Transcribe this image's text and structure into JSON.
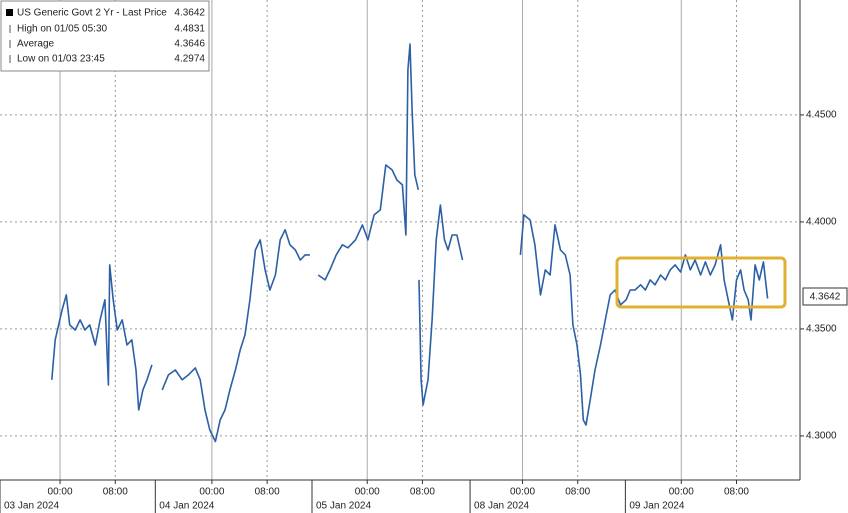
{
  "chart_data": {
    "type": "line",
    "series": [
      {
        "name": "US Generic Govt 2 Yr - Last Price",
        "color": "#2b5fa6",
        "values": [
          4.3262,
          4.3449,
          4.3589,
          4.3659,
          4.3519,
          4.3495,
          4.3542,
          4.3495,
          4.3519,
          4.3425,
          4.3542,
          4.3636,
          4.3238,
          4.3799,
          4.3636,
          4.3495,
          4.3542,
          4.3425,
          4.3449,
          4.3308,
          4.3121,
          4.3215,
          4.3262,
          4.3332,
          null,
          4.3215,
          4.3285,
          4.3308,
          4.3262,
          4.3285,
          4.3318,
          4.3262,
          4.3121,
          4.3028,
          4.2974,
          4.3075,
          4.3121,
          4.3215,
          4.3308,
          4.3402,
          4.3472,
          4.3636,
          4.3869,
          4.3916,
          4.3776,
          4.3682,
          4.3752,
          4.3916,
          4.3963,
          4.3893,
          4.3869,
          4.3822,
          4.3846,
          4.3846,
          null,
          4.3752,
          4.3729,
          4.3776,
          4.3846,
          4.3893,
          4.3879,
          4.3916,
          4.3986,
          4.3916,
          4.4033,
          4.4056,
          4.4266,
          4.4243,
          4.4196,
          4.4173,
          4.3939,
          4.471,
          4.4831,
          4.4523,
          4.422,
          4.415,
          null,
          4.3729,
          4.3262,
          4.3145,
          4.3262,
          4.3542,
          4.3916,
          4.4079,
          4.3916,
          4.3869,
          4.3939,
          4.3939,
          4.3822,
          null,
          4.3846,
          4.4033,
          4.4009,
          4.3893,
          4.3659,
          4.3776,
          4.3752,
          4.3986,
          4.3869,
          4.3846,
          4.3752,
          4.3519,
          4.3425,
          4.3285,
          4.3075,
          4.3051,
          4.3168,
          4.3308,
          4.3425,
          4.3542,
          4.3659,
          4.3682,
          4.3612,
          4.3636,
          4.3682,
          4.3682,
          4.3706,
          4.3682,
          4.3729,
          4.3706,
          4.3752,
          4.3729,
          4.3776,
          4.3799,
          4.3766,
          4.3846,
          4.3776,
          4.3822,
          4.3752,
          4.3813,
          4.3752,
          4.3799,
          4.3893,
          4.3729,
          4.3636,
          4.3542,
          4.3729,
          4.3776,
          4.3682,
          4.3636,
          4.3542,
          4.3799,
          4.3729,
          4.3813,
          4.3642
        ]
      }
    ],
    "x": [
      -1.2,
      -0.7,
      0.3,
      0.9,
      1.4,
      2.2,
      2.9,
      3.6,
      4.3,
      5.1,
      5.8,
      6.5,
      7.0,
      7.2,
      7.7,
      8.3,
      9.0,
      9.7,
      10.4,
      11.0,
      11.4,
      12.0,
      12.6,
      13.3,
      14.0,
      14.8,
      15.7,
      16.7,
      17.7,
      18.6,
      19.6,
      20.3,
      21.0,
      21.7,
      22.5,
      23.2,
      23.9,
      24.6,
      25.4,
      26.1,
      26.8,
      27.5,
      28.3,
      29.0,
      29.7,
      30.4,
      31.2,
      31.9,
      32.6,
      33.3,
      34.1,
      34.8,
      35.5,
      36.2,
      36.8,
      37.4,
      38.4,
      39.1,
      40.0,
      40.9,
      41.7,
      42.8,
      43.8,
      44.6,
      45.5,
      46.4,
      47.2,
      48.1,
      48.8,
      49.6,
      50.1,
      50.4,
      50.7,
      51.0,
      51.4,
      51.9,
      51.95,
      52.0,
      52.3,
      52.6,
      53.3,
      53.9,
      54.5,
      55.1,
      55.7,
      56.2,
      56.8,
      57.5,
      58.3,
      62.0,
      66.7,
      67.2,
      68.1,
      68.8,
      69.6,
      70.3,
      71.0,
      71.7,
      72.5,
      73.2,
      73.9,
      74.3,
      74.9,
      75.4,
      75.8,
      76.2,
      76.8,
      77.5,
      78.3,
      79.0,
      79.7,
      80.4,
      81.2,
      82.0,
      82.6,
      83.3,
      84.1,
      84.8,
      85.5,
      86.2,
      87.0,
      87.7,
      88.4,
      89.1,
      89.9,
      90.6,
      91.3,
      92.0,
      92.8,
      93.5,
      94.2,
      94.9,
      95.7,
      96.2,
      96.8,
      97.4,
      98.0,
      98.6,
      99.1,
      99.7,
      100.1,
      100.7,
      101.3,
      101.9,
      102.5
    ],
    "xlim": [
      -8.7,
      107.2
    ],
    "xticks": [
      {
        "value": 0,
        "label": "00:00"
      },
      {
        "value": 8,
        "label": "08:00"
      },
      {
        "value": 22,
        "label": "00:00"
      },
      {
        "value": 30,
        "label": "08:00"
      },
      {
        "value": 44.5,
        "label": "00:00"
      },
      {
        "value": 52.5,
        "label": "08:00"
      },
      {
        "value": 67,
        "label": "00:00"
      },
      {
        "value": 75,
        "label": "08:00"
      },
      {
        "value": 90,
        "label": "00:00"
      },
      {
        "value": 98,
        "label": "08:00"
      }
    ],
    "date_ticks": [
      {
        "value": -8.7,
        "label": "03 Jan 2024"
      },
      {
        "value": 13.8,
        "label": "04 Jan 2024"
      },
      {
        "value": 36.5,
        "label": "05 Jan 2024"
      },
      {
        "value": 59.4,
        "label": "08 Jan 2024"
      },
      {
        "value": 81.9,
        "label": "09 Jan 2024"
      }
    ],
    "ylim": [
      4.2794,
      4.5037
    ],
    "yticks": [
      {
        "value": 4.3,
        "label": "4.3000"
      },
      {
        "value": 4.35,
        "label": "4.3500"
      },
      {
        "value": 4.4,
        "label": "4.4000"
      },
      {
        "value": 4.45,
        "label": "4.4500"
      }
    ],
    "grid": true,
    "last_price": 4.3642,
    "legend": [
      {
        "label": "High on 01/05 05:30",
        "value": 4.4831
      },
      {
        "label": "Average",
        "value": 4.3646
      },
      {
        "label": "Low on 01/03 23:45",
        "value": 4.2974
      }
    ]
  }
}
